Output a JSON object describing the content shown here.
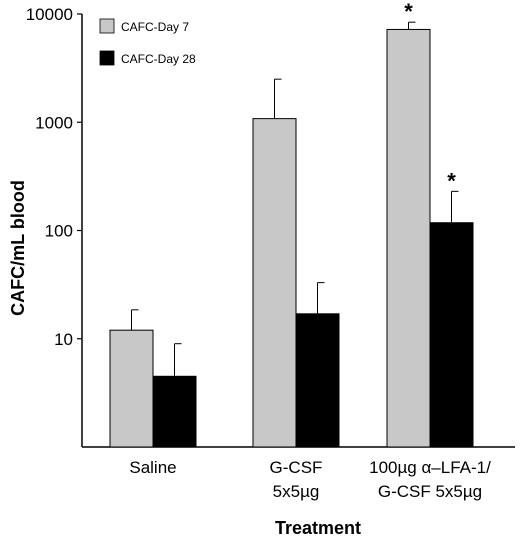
{
  "chart_data": {
    "type": "bar",
    "title": "",
    "xlabel": "Treatment",
    "ylabel": "CAFC/mL blood",
    "yscale": "log",
    "ylim": [
      1,
      10000
    ],
    "yticks": [
      "10",
      "100",
      "1000",
      "10000"
    ],
    "ytick_values": [
      10,
      100,
      1000,
      10000
    ],
    "categories": [
      [
        "Saline"
      ],
      [
        "G-CSF",
        "5x5µg"
      ],
      [
        "100µg α–LFA-1/",
        "G-CSF 5x5µg"
      ]
    ],
    "series": [
      {
        "name": "CAFC-Day 7",
        "color": "#c8c8c8",
        "values": [
          12,
          1080,
          7200
        ],
        "errors": [
          18.5,
          2500,
          8400
        ],
        "significant": [
          false,
          false,
          true
        ]
      },
      {
        "name": "CAFC-Day 28",
        "color": "#000000",
        "values": [
          4.5,
          17,
          118
        ],
        "errors": [
          9,
          33,
          230
        ],
        "significant": [
          false,
          false,
          true
        ]
      }
    ],
    "significance_marker": "*",
    "legend_position": "top-left",
    "grid": false
  }
}
